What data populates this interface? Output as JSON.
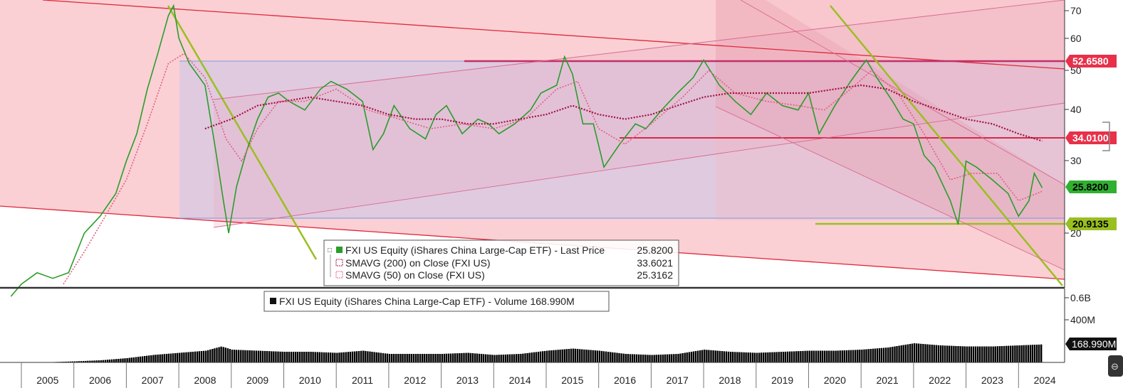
{
  "chart_data": [
    {
      "type": "line",
      "panel": "price",
      "series": [
        {
          "name": "FXI US Equity (iShares China Large-Cap ETF) - Last Price",
          "color": "#2a9d2a",
          "points": [
            [
              2004.8,
              14
            ],
            [
              2005.0,
              15
            ],
            [
              2005.3,
              16
            ],
            [
              2005.6,
              15.5
            ],
            [
              2005.9,
              16
            ],
            [
              2006.2,
              20
            ],
            [
              2006.5,
              22
            ],
            [
              2006.8,
              25
            ],
            [
              2007.0,
              30
            ],
            [
              2007.2,
              35
            ],
            [
              2007.4,
              45
            ],
            [
              2007.6,
              55
            ],
            [
              2007.8,
              68
            ],
            [
              2007.9,
              72
            ],
            [
              2008.0,
              60
            ],
            [
              2008.2,
              52
            ],
            [
              2008.5,
              46
            ],
            [
              2008.7,
              32
            ],
            [
              2008.85,
              24
            ],
            [
              2008.95,
              20
            ],
            [
              2009.1,
              26
            ],
            [
              2009.3,
              32
            ],
            [
              2009.5,
              38
            ],
            [
              2009.7,
              43
            ],
            [
              2009.9,
              44
            ],
            [
              2010.1,
              42
            ],
            [
              2010.4,
              40
            ],
            [
              2010.7,
              45
            ],
            [
              2010.9,
              47
            ],
            [
              2011.2,
              45
            ],
            [
              2011.5,
              42
            ],
            [
              2011.7,
              32
            ],
            [
              2011.9,
              35
            ],
            [
              2012.1,
              41
            ],
            [
              2012.4,
              36
            ],
            [
              2012.7,
              34
            ],
            [
              2012.9,
              39
            ],
            [
              2013.1,
              41
            ],
            [
              2013.4,
              35
            ],
            [
              2013.7,
              38
            ],
            [
              2013.9,
              37
            ],
            [
              2014.1,
              35
            ],
            [
              2014.4,
              37
            ],
            [
              2014.7,
              40
            ],
            [
              2014.9,
              44
            ],
            [
              2015.2,
              46
            ],
            [
              2015.35,
              54
            ],
            [
              2015.5,
              49
            ],
            [
              2015.7,
              37
            ],
            [
              2015.9,
              37
            ],
            [
              2016.1,
              29
            ],
            [
              2016.4,
              33
            ],
            [
              2016.7,
              37
            ],
            [
              2016.9,
              36
            ],
            [
              2017.2,
              40
            ],
            [
              2017.5,
              44
            ],
            [
              2017.8,
              48
            ],
            [
              2018.0,
              53
            ],
            [
              2018.3,
              46
            ],
            [
              2018.6,
              42
            ],
            [
              2018.9,
              39
            ],
            [
              2019.2,
              44
            ],
            [
              2019.5,
              41
            ],
            [
              2019.8,
              40
            ],
            [
              2020.0,
              44
            ],
            [
              2020.2,
              35
            ],
            [
              2020.5,
              41
            ],
            [
              2020.8,
              47
            ],
            [
              2021.0,
              51
            ],
            [
              2021.1,
              53
            ],
            [
              2021.3,
              48
            ],
            [
              2021.6,
              42
            ],
            [
              2021.8,
              38
            ],
            [
              2022.0,
              37
            ],
            [
              2022.2,
              31
            ],
            [
              2022.4,
              29
            ],
            [
              2022.7,
              24
            ],
            [
              2022.85,
              21
            ],
            [
              2023.0,
              30
            ],
            [
              2023.2,
              29
            ],
            [
              2023.5,
              27
            ],
            [
              2023.8,
              25
            ],
            [
              2024.0,
              22
            ],
            [
              2024.2,
              24
            ],
            [
              2024.3,
              28
            ],
            [
              2024.45,
              25.82
            ]
          ]
        },
        {
          "name": "SMAVG (200) on Close (FXI US)",
          "color": "#a01040",
          "points": [
            [
              2008.5,
              36
            ],
            [
              2009.0,
              38
            ],
            [
              2009.5,
              41
            ],
            [
              2010.0,
              42
            ],
            [
              2010.5,
              43
            ],
            [
              2011.0,
              42
            ],
            [
              2011.5,
              41
            ],
            [
              2012.0,
              39
            ],
            [
              2012.5,
              38
            ],
            [
              2013.0,
              38
            ],
            [
              2013.5,
              37
            ],
            [
              2014.0,
              37
            ],
            [
              2014.5,
              38
            ],
            [
              2015.0,
              39
            ],
            [
              2015.5,
              41
            ],
            [
              2016.0,
              39
            ],
            [
              2016.5,
              38
            ],
            [
              2017.0,
              39
            ],
            [
              2017.5,
              41
            ],
            [
              2018.0,
              43
            ],
            [
              2018.5,
              44
            ],
            [
              2019.0,
              44
            ],
            [
              2019.5,
              44
            ],
            [
              2020.0,
              44
            ],
            [
              2020.5,
              45
            ],
            [
              2021.0,
              46
            ],
            [
              2021.5,
              45
            ],
            [
              2022.0,
              42
            ],
            [
              2022.5,
              40
            ],
            [
              2023.0,
              38
            ],
            [
              2023.5,
              37
            ],
            [
              2024.0,
              35
            ],
            [
              2024.45,
              33.6
            ]
          ]
        },
        {
          "name": "SMAVG (50) on Close (FXI US)",
          "color": "#e06080",
          "points": [
            [
              2005.8,
              15
            ],
            [
              2006.2,
              18
            ],
            [
              2006.6,
              22
            ],
            [
              2007.0,
              27
            ],
            [
              2007.4,
              37
            ],
            [
              2007.8,
              52
            ],
            [
              2008.1,
              55
            ],
            [
              2008.5,
              48
            ],
            [
              2008.9,
              34
            ],
            [
              2009.2,
              30
            ],
            [
              2009.5,
              36
            ],
            [
              2009.9,
              42
            ],
            [
              2010.4,
              42
            ],
            [
              2011.0,
              45
            ],
            [
              2011.6,
              40
            ],
            [
              2012.2,
              38
            ],
            [
              2012.8,
              36
            ],
            [
              2013.4,
              37
            ],
            [
              2014.0,
              36
            ],
            [
              2014.6,
              38
            ],
            [
              2015.2,
              45
            ],
            [
              2015.6,
              47
            ],
            [
              2016.0,
              36
            ],
            [
              2016.5,
              33
            ],
            [
              2017.0,
              37
            ],
            [
              2017.6,
              43
            ],
            [
              2018.1,
              50
            ],
            [
              2018.6,
              44
            ],
            [
              2019.2,
              42
            ],
            [
              2019.8,
              41
            ],
            [
              2020.3,
              40
            ],
            [
              2020.8,
              45
            ],
            [
              2021.2,
              50
            ],
            [
              2021.7,
              44
            ],
            [
              2022.2,
              35
            ],
            [
              2022.7,
              27
            ],
            [
              2023.1,
              28
            ],
            [
              2023.6,
              28
            ],
            [
              2024.0,
              24
            ],
            [
              2024.45,
              25.3
            ]
          ]
        }
      ],
      "legend_lines": [
        {
          "label": "FXI US Equity (iShares China Large-Cap ETF) - Last Price",
          "value": "25.8200",
          "color": "#2a9d2a"
        },
        {
          "label": "SMAVG (200)  on Close (FXI US)",
          "value": "33.6021",
          "color": "#a01040"
        },
        {
          "label": "SMAVG (50)  on Close (FXI US)",
          "value": "25.3162",
          "color": "#e06080"
        }
      ],
      "y_ticks": [
        "70",
        "60",
        "50",
        "40",
        "30",
        "20"
      ],
      "price_tags": [
        {
          "value": "52.6580",
          "color": "#e8304a"
        },
        {
          "value": "34.0100",
          "color": "#e8304a"
        },
        {
          "value": "25.8200",
          "color": "#30b030"
        },
        {
          "value": "20.9135",
          "color": "#9abf20"
        }
      ],
      "yscale": "log"
    },
    {
      "type": "bar",
      "panel": "volume",
      "series": [
        {
          "name": "FXI US Equity (iShares China Large-Cap ETF) - Volume",
          "color": "#000000"
        }
      ],
      "legend": {
        "label": "FXI US Equity (iShares China Large-Cap ETF) - Volume",
        "value": "168.990M"
      },
      "y_ticks": [
        "0.6B",
        "400M"
      ],
      "last_tag": "168.990M",
      "values_m": [
        [
          2005.0,
          0
        ],
        [
          2005.5,
          2
        ],
        [
          2006.0,
          10
        ],
        [
          2006.5,
          20
        ],
        [
          2007.0,
          40
        ],
        [
          2007.5,
          70
        ],
        [
          2008.0,
          90
        ],
        [
          2008.5,
          110
        ],
        [
          2008.8,
          150
        ],
        [
          2009.0,
          120
        ],
        [
          2009.5,
          110
        ],
        [
          2010.0,
          100
        ],
        [
          2010.5,
          100
        ],
        [
          2011.0,
          90
        ],
        [
          2011.5,
          110
        ],
        [
          2012.0,
          80
        ],
        [
          2012.5,
          80
        ],
        [
          2013.0,
          80
        ],
        [
          2013.5,
          90
        ],
        [
          2014.0,
          70
        ],
        [
          2014.5,
          80
        ],
        [
          2015.0,
          110
        ],
        [
          2015.5,
          130
        ],
        [
          2016.0,
          110
        ],
        [
          2016.5,
          80
        ],
        [
          2017.0,
          70
        ],
        [
          2017.5,
          80
        ],
        [
          2018.0,
          120
        ],
        [
          2018.5,
          100
        ],
        [
          2019.0,
          90
        ],
        [
          2019.5,
          100
        ],
        [
          2020.0,
          110
        ],
        [
          2020.5,
          110
        ],
        [
          2021.0,
          120
        ],
        [
          2021.5,
          140
        ],
        [
          2022.0,
          180
        ],
        [
          2022.5,
          160
        ],
        [
          2023.0,
          150
        ],
        [
          2023.5,
          150
        ],
        [
          2024.0,
          160
        ],
        [
          2024.45,
          169
        ]
      ]
    }
  ],
  "x_axis": {
    "labels": [
      "2005",
      "2006",
      "2007",
      "2008",
      "2009",
      "2010",
      "2011",
      "2012",
      "2013",
      "2014",
      "2015",
      "2016",
      "2017",
      "2018",
      "2019",
      "2020",
      "2021",
      "2022",
      "2023",
      "2024"
    ]
  }
}
